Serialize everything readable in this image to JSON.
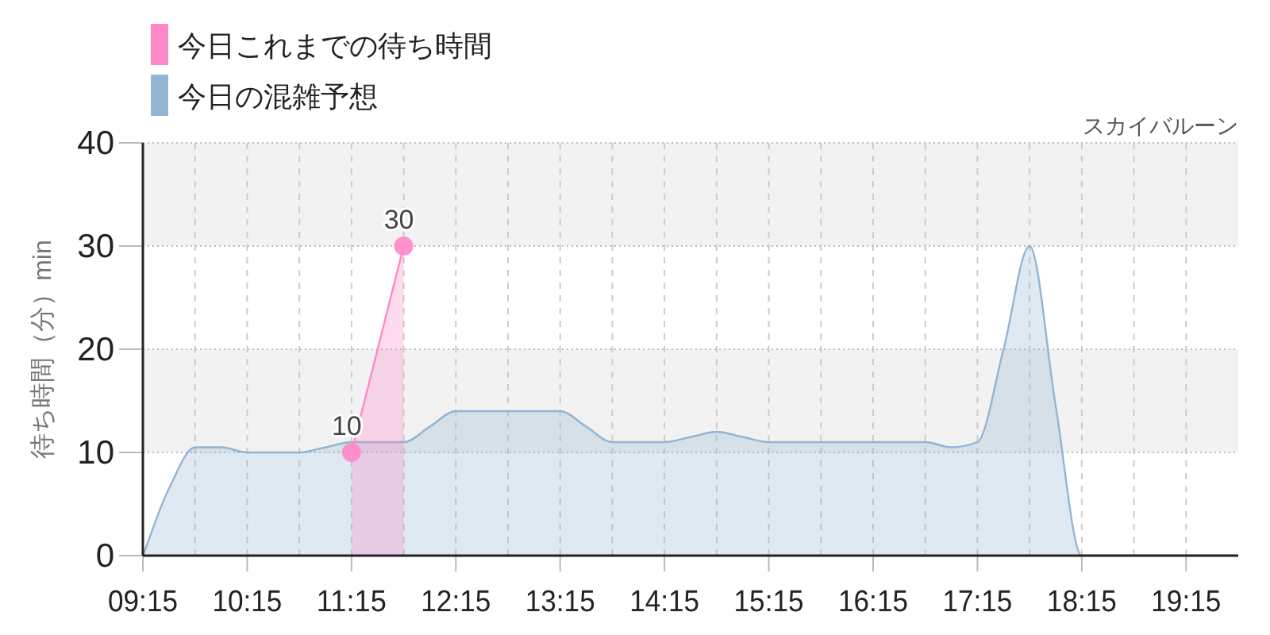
{
  "chart_data": {
    "type": "area",
    "subtitle": "スカイバルーン",
    "ylabel": "待ち時間（分）min",
    "x": [
      9.25,
      9.5,
      9.75,
      10.0,
      10.25,
      10.5,
      10.75,
      11.0,
      11.25,
      11.5,
      11.75,
      12.0,
      12.25,
      12.5,
      12.75,
      13.0,
      13.25,
      13.5,
      13.75,
      14.0,
      14.25,
      14.5,
      14.75,
      15.0,
      15.25,
      15.5,
      15.75,
      16.0,
      16.25,
      16.5,
      16.75,
      17.0,
      17.25,
      17.5,
      17.75,
      18.0,
      18.25,
      18.5,
      18.75,
      19.0,
      19.25,
      19.5,
      19.75
    ],
    "series": [
      {
        "name": "今日これまでの待ち時間",
        "color": "#ff88c8",
        "marker": "circle",
        "x": [
          11.25,
          11.75
        ],
        "values": [
          10,
          30
        ],
        "value_labels": [
          "10",
          "30"
        ]
      },
      {
        "name": "今日の混雑予想",
        "color": "#93b5d3",
        "values": [
          0,
          6.5,
          10.5,
          10.5,
          10,
          10,
          10,
          10.5,
          11,
          11,
          11,
          12.5,
          14,
          14,
          14,
          14,
          14,
          12.5,
          11,
          11,
          11,
          11.5,
          12,
          11.5,
          11,
          11,
          11,
          11,
          11,
          11,
          11,
          10.5,
          11,
          20,
          30,
          14.5,
          0,
          0,
          0,
          0,
          0,
          0,
          0
        ]
      }
    ],
    "xlim": [
      9.25,
      19.75
    ],
    "xticks": [
      {
        "value": 9.25,
        "label": "09:15"
      },
      {
        "value": 9.75,
        "label": null
      },
      {
        "value": 10.25,
        "label": "10:15"
      },
      {
        "value": 10.75,
        "label": null
      },
      {
        "value": 11.25,
        "label": "11:15"
      },
      {
        "value": 11.75,
        "label": null
      },
      {
        "value": 12.25,
        "label": "12:15"
      },
      {
        "value": 12.75,
        "label": null
      },
      {
        "value": 13.25,
        "label": "13:15"
      },
      {
        "value": 13.75,
        "label": null
      },
      {
        "value": 14.25,
        "label": "14:15"
      },
      {
        "value": 14.75,
        "label": null
      },
      {
        "value": 15.25,
        "label": "15:15"
      },
      {
        "value": 15.75,
        "label": null
      },
      {
        "value": 16.25,
        "label": "16:15"
      },
      {
        "value": 16.75,
        "label": null
      },
      {
        "value": 17.25,
        "label": "17:15"
      },
      {
        "value": 17.75,
        "label": null
      },
      {
        "value": 18.25,
        "label": "18:15"
      },
      {
        "value": 18.75,
        "label": null
      },
      {
        "value": 19.25,
        "label": "19:15"
      }
    ],
    "ylim": [
      0,
      40
    ],
    "yticks": [
      0,
      10,
      20,
      30,
      40
    ],
    "grid": true,
    "legend": "top left",
    "bands": [
      {
        "axis": "y",
        "from": 10,
        "to": 20,
        "color": "#f2f2f2"
      },
      {
        "axis": "y",
        "from": 30,
        "to": 40,
        "color": "#f2f2f2"
      }
    ]
  }
}
